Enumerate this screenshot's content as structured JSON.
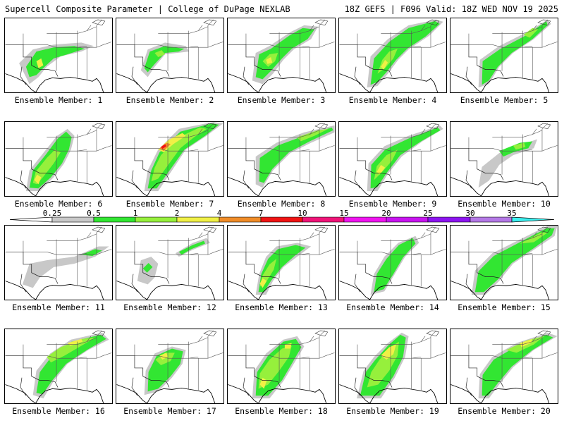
{
  "header": {
    "left_title": "Supercell Composite Parameter | College of DuPage NEXLAB",
    "right_title": "18Z GEFS | F096 Valid: 18Z WED NOV 19 2025"
  },
  "panels": [
    {
      "label": "Ensemble Member: 1"
    },
    {
      "label": "Ensemble Member: 2"
    },
    {
      "label": "Ensemble Member: 3"
    },
    {
      "label": "Ensemble Member: 4"
    },
    {
      "label": "Ensemble Member: 5"
    },
    {
      "label": "Ensemble Member: 6"
    },
    {
      "label": "Ensemble Member: 7"
    },
    {
      "label": "Ensemble Member: 8"
    },
    {
      "label": "Ensemble Member: 9"
    },
    {
      "label": "Ensemble Member: 10"
    },
    {
      "label": "Ensemble Member: 11"
    },
    {
      "label": "Ensemble Member: 12"
    },
    {
      "label": "Ensemble Member: 13"
    },
    {
      "label": "Ensemble Member: 14"
    },
    {
      "label": "Ensemble Member: 15"
    },
    {
      "label": "Ensemble Member: 16"
    },
    {
      "label": "Ensemble Member: 17"
    },
    {
      "label": "Ensemble Member: 18"
    },
    {
      "label": "Ensemble Member: 19"
    },
    {
      "label": "Ensemble Member: 20"
    }
  ],
  "colorbar": {
    "ticks": [
      "0.25",
      "0.5",
      "1",
      "2",
      "4",
      "7",
      "10",
      "15",
      "20",
      "25",
      "30",
      "35"
    ],
    "colors": [
      "#c8c8c8",
      "#32e632",
      "#96f03c",
      "#f0f046",
      "#f08c28",
      "#f01414",
      "#f01478",
      "#f014f0",
      "#c814f0",
      "#8c14f0",
      "#b478e6",
      "#3cf0f0"
    ]
  }
}
